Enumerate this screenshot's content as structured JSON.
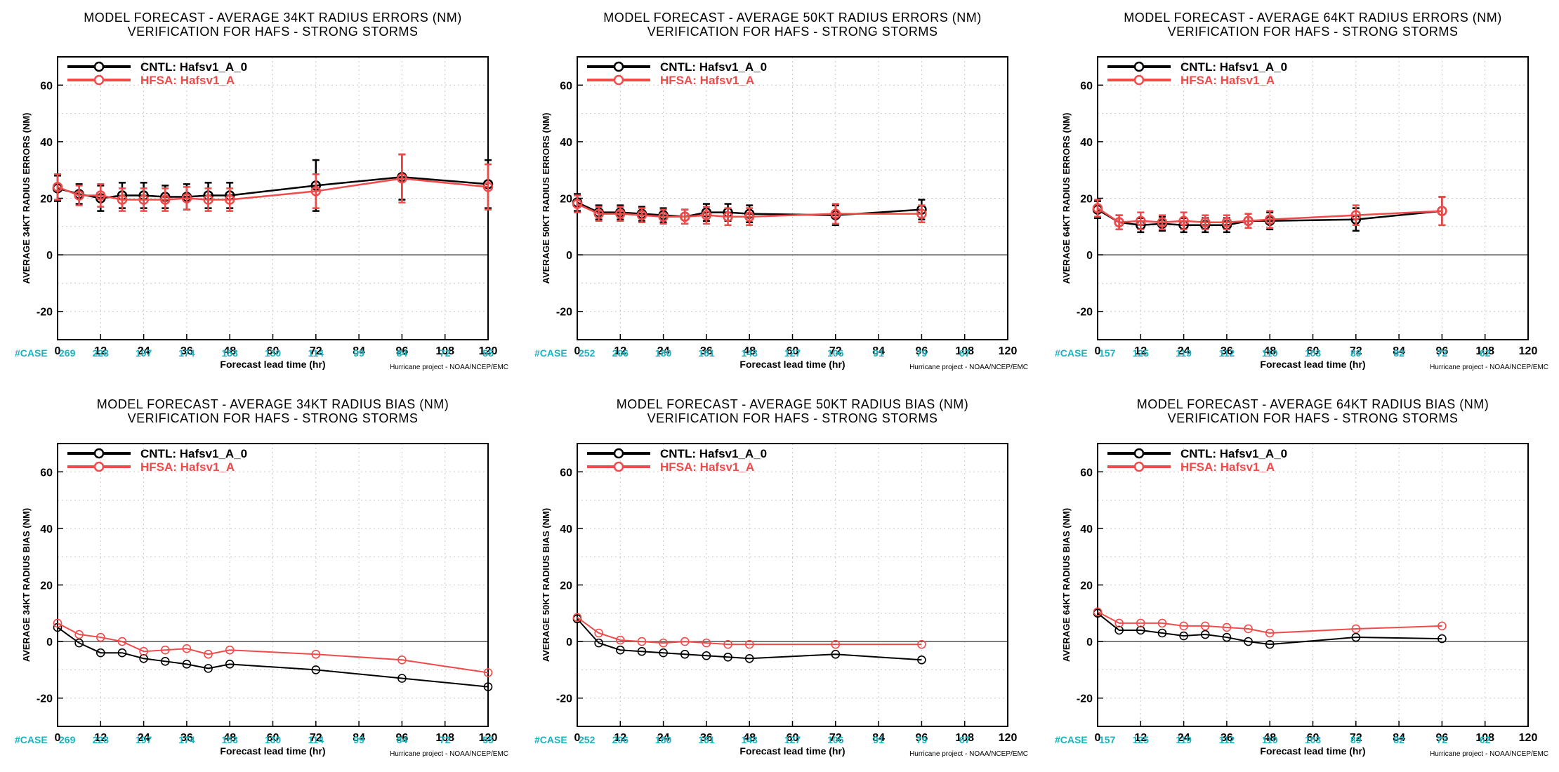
{
  "chart_data": [
    {
      "type": "line",
      "title_line1": "MODEL FORECAST - AVERAGE 34KT RADIUS ERRORS (NM)",
      "title_line2": "VERIFICATION FOR HAFS - STRONG STORMS",
      "ylabel": "AVERAGE 34KT RADIUS ERRORS (NM)",
      "xlabel": "Forecast lead time (hr)",
      "credit": "Hurricane project - NOAA/NCEP/EMC",
      "xlim": [
        0,
        120
      ],
      "ylim": [
        -30,
        70
      ],
      "xticks": [
        0,
        12,
        24,
        36,
        48,
        60,
        72,
        84,
        96,
        108,
        120
      ],
      "yticks": [
        -20,
        0,
        20,
        40,
        60
      ],
      "case_label": "#CASE",
      "cases": [
        269,
        228,
        197,
        174,
        153,
        130,
        114,
        99,
        84,
        72,
        55
      ],
      "errorbars": true,
      "series": [
        {
          "name": "CNTL: Hafsv1_A_0",
          "color": "#000000",
          "x": [
            0,
            6,
            12,
            18,
            24,
            30,
            36,
            42,
            48,
            72,
            96,
            120
          ],
          "y": [
            23.5,
            21.5,
            20.0,
            21.0,
            21.0,
            20.5,
            20.5,
            21.0,
            21.0,
            24.5,
            27.5,
            25.0
          ],
          "err": [
            4.5,
            3.5,
            4.5,
            4.5,
            4.5,
            4.0,
            4.5,
            4.5,
            4.5,
            9.0,
            8.0,
            8.5
          ]
        },
        {
          "name": "HFSA: Hafsv1_A",
          "color": "#f04a4a",
          "x": [
            0,
            6,
            12,
            18,
            24,
            30,
            36,
            42,
            48,
            72,
            96,
            120
          ],
          "y": [
            24.0,
            21.0,
            21.0,
            19.5,
            19.5,
            19.5,
            20.0,
            19.5,
            19.5,
            22.5,
            27.0,
            24.0
          ],
          "err": [
            4.5,
            3.5,
            4.0,
            4.0,
            4.0,
            4.0,
            4.0,
            4.0,
            4.0,
            6.0,
            8.5,
            8.0
          ]
        }
      ]
    },
    {
      "type": "line",
      "title_line1": "MODEL FORECAST - AVERAGE 50KT RADIUS ERRORS (NM)",
      "title_line2": "VERIFICATION FOR HAFS - STRONG STORMS",
      "ylabel": "AVERAGE 50KT RADIUS ERRORS (NM)",
      "xlabel": "Forecast lead time (hr)",
      "credit": "Hurricane project - NOAA/NCEP/EMC",
      "xlim": [
        0,
        120
      ],
      "ylim": [
        -30,
        70
      ],
      "xticks": [
        0,
        12,
        24,
        36,
        48,
        60,
        72,
        84,
        96,
        108,
        120
      ],
      "yticks": [
        -20,
        0,
        20,
        40,
        60
      ],
      "case_label": "#CASE",
      "cases": [
        252,
        206,
        180,
        161,
        143,
        127,
        106,
        91,
        79,
        67
      ],
      "errorbars": true,
      "series": [
        {
          "name": "CNTL: Hafsv1_A_0",
          "color": "#000000",
          "x": [
            0,
            6,
            12,
            18,
            24,
            30,
            36,
            42,
            48,
            72,
            96
          ],
          "y": [
            18.5,
            15.0,
            15.0,
            14.5,
            14.0,
            13.5,
            15.0,
            15.0,
            14.5,
            14.0,
            16.0
          ],
          "err": [
            3.0,
            2.5,
            2.5,
            2.5,
            2.5,
            2.5,
            3.0,
            3.0,
            3.0,
            3.5,
            3.5
          ]
        },
        {
          "name": "HFSA: Hafsv1_A",
          "color": "#f04a4a",
          "x": [
            0,
            6,
            12,
            18,
            24,
            30,
            36,
            42,
            48,
            72,
            96
          ],
          "y": [
            18.0,
            14.5,
            14.5,
            14.0,
            13.5,
            13.5,
            14.0,
            13.5,
            13.5,
            14.5,
            14.5
          ],
          "err": [
            3.0,
            2.5,
            2.5,
            2.5,
            2.5,
            2.5,
            3.0,
            3.0,
            3.0,
            3.5,
            3.0
          ]
        }
      ]
    },
    {
      "type": "line",
      "title_line1": "MODEL FORECAST - AVERAGE 64KT RADIUS ERRORS (NM)",
      "title_line2": "VERIFICATION FOR HAFS - STRONG STORMS",
      "ylabel": "AVERAGE 64KT RADIUS ERRORS (NM)",
      "xlabel": "Forecast lead time (hr)",
      "credit": "Hurricane project - NOAA/NCEP/EMC",
      "xlim": [
        0,
        120
      ],
      "ylim": [
        -30,
        70
      ],
      "xticks": [
        0,
        12,
        24,
        36,
        48,
        60,
        72,
        84,
        96,
        108,
        120
      ],
      "yticks": [
        -20,
        0,
        20,
        40,
        60
      ],
      "case_label": "#CASE",
      "cases": [
        157,
        125,
        119,
        112,
        110,
        103,
        89,
        82,
        72,
        62
      ],
      "errorbars": true,
      "series": [
        {
          "name": "CNTL: Hafsv1_A_0",
          "color": "#000000",
          "x": [
            0,
            6,
            12,
            18,
            24,
            30,
            36,
            42,
            48,
            72,
            96
          ],
          "y": [
            16.0,
            11.5,
            10.5,
            11.0,
            10.5,
            10.5,
            10.5,
            12.0,
            12.0,
            12.5,
            15.5
          ],
          "err": [
            3.0,
            2.5,
            2.5,
            2.5,
            2.5,
            2.5,
            2.5,
            2.5,
            3.0,
            4.0,
            5.0
          ]
        },
        {
          "name": "HFSA: Hafsv1_A",
          "color": "#f04a4a",
          "x": [
            0,
            6,
            12,
            18,
            24,
            30,
            36,
            42,
            48,
            72,
            96
          ],
          "y": [
            16.5,
            11.5,
            12.0,
            11.5,
            12.0,
            11.5,
            11.5,
            12.0,
            12.5,
            14.0,
            15.5
          ],
          "err": [
            3.0,
            2.5,
            3.0,
            2.5,
            3.0,
            2.5,
            2.5,
            2.5,
            3.0,
            3.5,
            5.0
          ]
        }
      ]
    },
    {
      "type": "line",
      "title_line1": "MODEL FORECAST - AVERAGE 34KT RADIUS BIAS (NM)",
      "title_line2": "VERIFICATION FOR HAFS - STRONG STORMS",
      "ylabel": "AVERAGE 34KT RADIUS BIAS (NM)",
      "xlabel": "Forecast lead time (hr)",
      "credit": "Hurricane project - NOAA/NCEP/EMC",
      "xlim": [
        0,
        120
      ],
      "ylim": [
        -30,
        70
      ],
      "xticks": [
        0,
        12,
        24,
        36,
        48,
        60,
        72,
        84,
        96,
        108,
        120
      ],
      "yticks": [
        -20,
        0,
        20,
        40,
        60
      ],
      "case_label": "#CASE",
      "cases": [
        269,
        228,
        197,
        174,
        153,
        130,
        114,
        99,
        84,
        72,
        55
      ],
      "errorbars": false,
      "series": [
        {
          "name": "CNTL: Hafsv1_A_0",
          "color": "#000000",
          "x": [
            0,
            6,
            12,
            18,
            24,
            30,
            36,
            42,
            48,
            72,
            96,
            120
          ],
          "y": [
            5.0,
            -0.5,
            -4.0,
            -4.0,
            -6.0,
            -7.0,
            -8.0,
            -9.5,
            -8.0,
            -10.0,
            -13.0,
            -16.0
          ]
        },
        {
          "name": "HFSA: Hafsv1_A",
          "color": "#f04a4a",
          "x": [
            0,
            6,
            12,
            18,
            24,
            30,
            36,
            42,
            48,
            72,
            96,
            120
          ],
          "y": [
            6.5,
            2.5,
            1.5,
            0.0,
            -3.5,
            -3.0,
            -2.5,
            -4.5,
            -3.0,
            -4.5,
            -6.5,
            -11.0
          ]
        }
      ]
    },
    {
      "type": "line",
      "title_line1": "MODEL FORECAST - AVERAGE 50KT RADIUS BIAS (NM)",
      "title_line2": "VERIFICATION FOR HAFS - STRONG STORMS",
      "ylabel": "AVERAGE 50KT RADIUS BIAS (NM)",
      "xlabel": "Forecast lead time (hr)",
      "credit": "Hurricane project - NOAA/NCEP/EMC",
      "xlim": [
        0,
        120
      ],
      "ylim": [
        -30,
        70
      ],
      "xticks": [
        0,
        12,
        24,
        36,
        48,
        60,
        72,
        84,
        96,
        108,
        120
      ],
      "yticks": [
        -20,
        0,
        20,
        40,
        60
      ],
      "case_label": "#CASE",
      "cases": [
        252,
        206,
        180,
        161,
        143,
        127,
        106,
        91,
        79,
        67
      ],
      "errorbars": false,
      "series": [
        {
          "name": "CNTL: Hafsv1_A_0",
          "color": "#000000",
          "x": [
            0,
            6,
            12,
            18,
            24,
            30,
            36,
            42,
            48,
            72,
            96
          ],
          "y": [
            8.0,
            -0.5,
            -3.0,
            -3.5,
            -4.0,
            -4.5,
            -5.0,
            -5.5,
            -6.0,
            -4.5,
            -6.5
          ]
        },
        {
          "name": "HFSA: Hafsv1_A",
          "color": "#f04a4a",
          "x": [
            0,
            6,
            12,
            18,
            24,
            30,
            36,
            42,
            48,
            72,
            96
          ],
          "y": [
            8.5,
            3.0,
            0.5,
            0.0,
            -0.5,
            0.0,
            -0.5,
            -1.0,
            -1.0,
            -1.0,
            -1.0
          ]
        }
      ]
    },
    {
      "type": "line",
      "title_line1": "MODEL FORECAST - AVERAGE 64KT RADIUS BIAS (NM)",
      "title_line2": "VERIFICATION FOR HAFS - STRONG STORMS",
      "ylabel": "AVERAGE 64KT RADIUS BIAS (NM)",
      "xlabel": "Forecast lead time (hr)",
      "credit": "Hurricane project - NOAA/NCEP/EMC",
      "xlim": [
        0,
        120
      ],
      "ylim": [
        -30,
        70
      ],
      "xticks": [
        0,
        12,
        24,
        36,
        48,
        60,
        72,
        84,
        96,
        108,
        120
      ],
      "yticks": [
        -20,
        0,
        20,
        40,
        60
      ],
      "case_label": "#CASE",
      "cases": [
        157,
        125,
        119,
        112,
        110,
        103,
        89,
        82,
        72,
        62
      ],
      "errorbars": false,
      "series": [
        {
          "name": "CNTL: Hafsv1_A_0",
          "color": "#000000",
          "x": [
            0,
            6,
            12,
            18,
            24,
            30,
            36,
            42,
            48,
            72,
            96
          ],
          "y": [
            10.0,
            4.0,
            4.0,
            3.0,
            2.0,
            2.5,
            1.5,
            0.0,
            -1.0,
            1.5,
            1.0
          ]
        },
        {
          "name": "HFSA: Hafsv1_A",
          "color": "#f04a4a",
          "x": [
            0,
            6,
            12,
            18,
            24,
            30,
            36,
            42,
            48,
            72,
            96
          ],
          "y": [
            10.5,
            6.5,
            6.5,
            6.5,
            5.5,
            5.5,
            5.0,
            4.5,
            3.0,
            4.5,
            5.5
          ]
        }
      ]
    }
  ]
}
